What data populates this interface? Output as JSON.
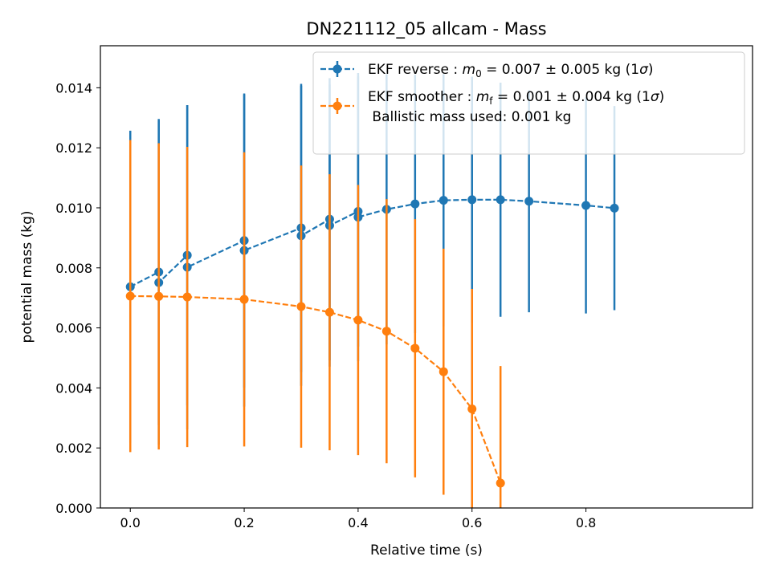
{
  "chart_data": {
    "type": "scatter",
    "title": "DN221112_05 allcam - Mass",
    "xlabel": "Relative time (s)",
    "ylabel": "potential mass (kg)",
    "xlim": [
      -0.0525,
      1.0925
    ],
    "ylim": [
      0,
      0.0154
    ],
    "x_ticks": [
      0.0,
      0.2,
      0.4,
      0.6,
      0.8
    ],
    "x_tick_labels": [
      "0.0",
      "0.2",
      "0.4",
      "0.6",
      "0.8"
    ],
    "y_ticks": [
      0.0,
      0.002,
      0.004,
      0.006,
      0.008,
      0.01,
      0.012,
      0.014
    ],
    "y_tick_labels": [
      "0.000",
      "0.002",
      "0.004",
      "0.006",
      "0.008",
      "0.010",
      "0.012",
      "0.014"
    ],
    "grid": false,
    "legend_position": "top-right",
    "legend": {
      "entries": [
        {
          "prefix": "EKF reverse : ",
          "sym": "m",
          "sub": "0",
          "suffix": " =  0.007 ± 0.005 kg (1",
          "sigma": "σ",
          "close": ")"
        },
        {
          "prefix": "EKF smoother : ",
          "sym": "m",
          "sub": "f",
          "suffix": " =  0.001 ± 0.004 kg (1",
          "sigma": "σ",
          "close": ")"
        }
      ],
      "extra_line": " Ballistic mass used: 0.001 kg"
    },
    "series": [
      {
        "name": "EKF reverse",
        "color": "#1f77b4",
        "x": [
          0.0,
          0.05,
          0.05,
          0.1,
          0.1,
          0.2,
          0.2,
          0.3,
          0.3,
          0.35,
          0.35,
          0.4,
          0.4,
          0.45,
          0.5,
          0.55,
          0.6,
          0.65,
          0.7,
          0.8,
          0.85
        ],
        "y": [
          0.00737,
          0.00786,
          0.00751,
          0.00842,
          0.00802,
          0.00891,
          0.00858,
          0.00933,
          0.00907,
          0.00962,
          0.00941,
          0.00988,
          0.00969,
          0.00995,
          0.01013,
          0.01025,
          0.01027,
          0.01027,
          0.01022,
          0.01008,
          0.00999
        ],
        "err": [
          0.0052,
          0.0051,
          0.0054,
          0.005,
          0.0054,
          0.0049,
          0.0052,
          0.0048,
          0.005,
          0.0047,
          0.0047,
          0.0045,
          0.0048,
          0.0045,
          0.0043,
          0.0042,
          0.0041,
          0.0039,
          0.0037,
          0.0036,
          0.0034
        ]
      },
      {
        "name": "EKF smoother",
        "color": "#ff7f0e",
        "x": [
          0.0,
          0.05,
          0.1,
          0.2,
          0.3,
          0.35,
          0.4,
          0.45,
          0.5,
          0.55,
          0.6,
          0.65
        ],
        "y": [
          0.00706,
          0.00705,
          0.00703,
          0.00695,
          0.00671,
          0.00652,
          0.00626,
          0.00589,
          0.00532,
          0.00454,
          0.0033,
          0.00083
        ],
        "err": [
          0.0052,
          0.0051,
          0.005,
          0.0049,
          0.0047,
          0.0046,
          0.0045,
          0.0044,
          0.0043,
          0.0041,
          0.004,
          0.0039
        ]
      }
    ]
  }
}
